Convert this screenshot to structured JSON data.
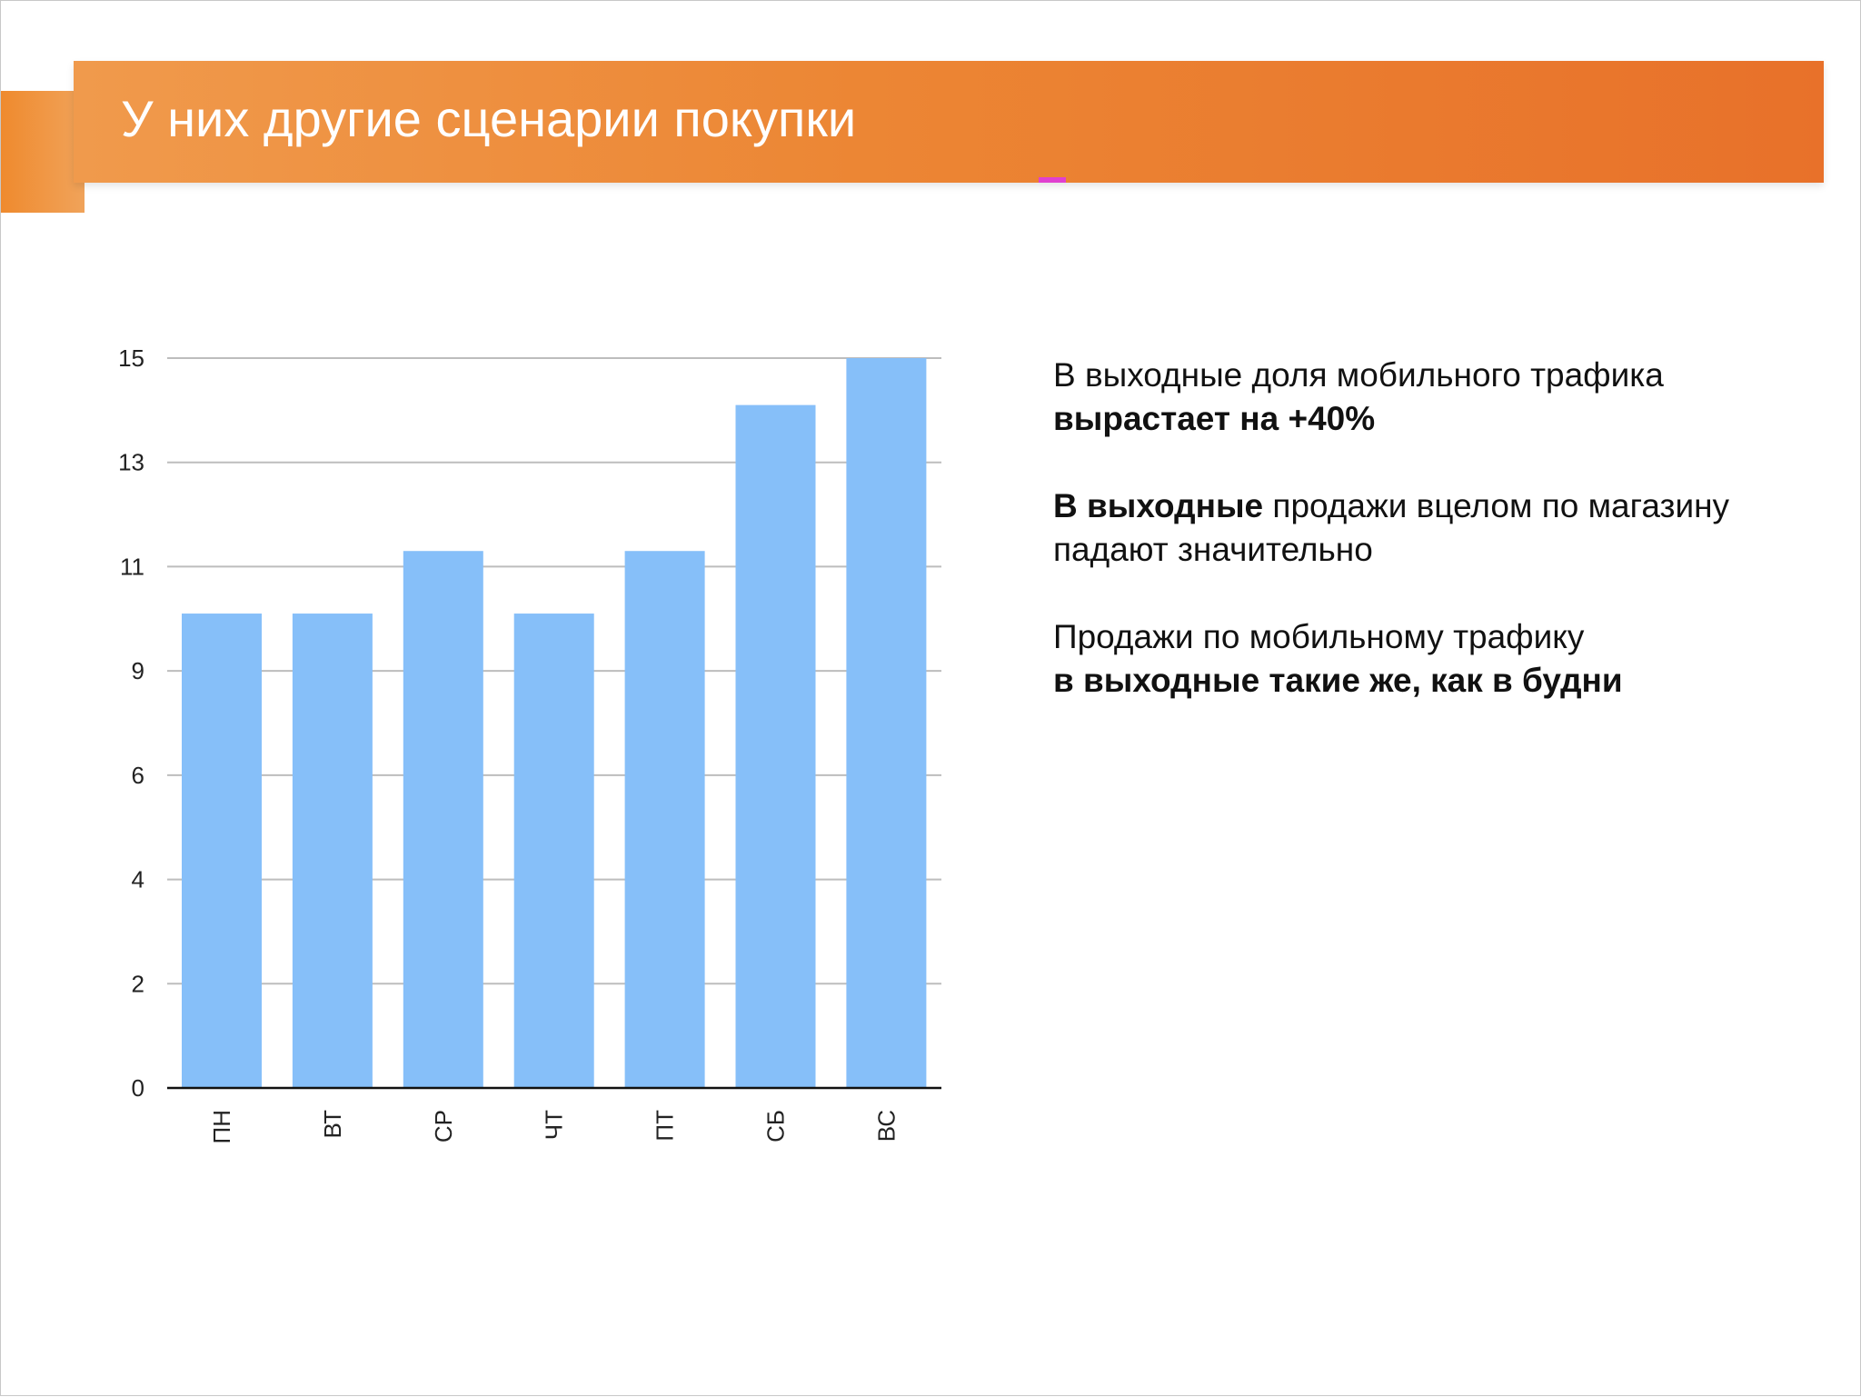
{
  "slide": {
    "title": "У них другие сценарии покупки",
    "colors": {
      "header_start": "#f09a4c",
      "header_end": "#e8712a",
      "bar": "#86bff9"
    }
  },
  "chart_data": {
    "type": "bar",
    "categories": [
      "ПН",
      "ВТ",
      "СР",
      "ЧТ",
      "ПТ",
      "СБ",
      "ВС"
    ],
    "values": [
      10.1,
      10.1,
      11.3,
      10.1,
      11.3,
      14.1,
      15.0
    ],
    "yticks": [
      0,
      2,
      4,
      6,
      9,
      11,
      13,
      15
    ],
    "ylim": [
      0,
      15
    ],
    "grid": true,
    "title": "",
    "xlabel": "",
    "ylabel": ""
  },
  "notes": {
    "p1_line1": "В выходные доля мобильного трафика",
    "p1_line2_bold": "вырастает на +40%",
    "p2_bold": "В выходные",
    "p2_rest": " продажи вцелом по магазину",
    "p2_line2": "падают значительно",
    "p3_line1": "Продажи по мобильному трафику",
    "p3_line2_bold": "в выходные такие же, как в будни"
  }
}
